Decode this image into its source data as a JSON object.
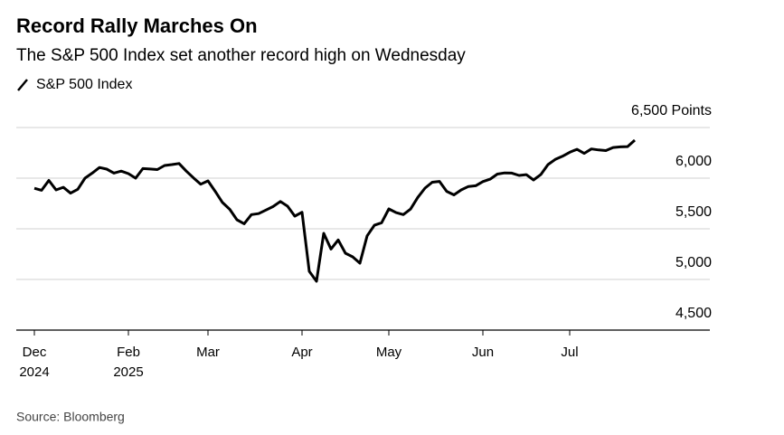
{
  "chart_data": {
    "type": "line",
    "title": "Record Rally Marches On",
    "subtitle": "The S&P 500 Index set another record high on Wednesday",
    "source": "Source: Bloomberg",
    "categories": [
      "Dec 2024",
      null,
      null,
      null,
      null,
      null,
      null,
      null,
      null,
      null,
      null,
      null,
      null,
      "Feb 2025",
      null,
      null,
      null,
      null,
      null,
      null,
      null,
      null,
      null,
      null,
      "Mar",
      null,
      null,
      null,
      null,
      null,
      null,
      null,
      null,
      null,
      null,
      null,
      null,
      "Apr",
      null,
      null,
      null,
      null,
      null,
      null,
      null,
      null,
      null,
      null,
      null,
      "May",
      null,
      null,
      null,
      null,
      null,
      null,
      null,
      null,
      null,
      null,
      null,
      null,
      "Jun",
      null,
      null,
      null,
      null,
      null,
      null,
      null,
      null,
      null,
      null,
      null,
      "Jul",
      null,
      null,
      null,
      null,
      null,
      null,
      null,
      null,
      null
    ],
    "series": [
      {
        "name": "S&P 500 Index",
        "color": "#000000",
        "values": [
          5900,
          5880,
          5978,
          5884,
          5910,
          5852,
          5890,
          6000,
          6050,
          6105,
          6089,
          6050,
          6070,
          6045,
          6000,
          6095,
          6090,
          6085,
          6125,
          6134,
          6145,
          6070,
          6003,
          5940,
          5973,
          5870,
          5760,
          5693,
          5589,
          5550,
          5640,
          5650,
          5685,
          5720,
          5770,
          5723,
          5625,
          5663,
          5080,
          4982,
          5455,
          5300,
          5390,
          5259,
          5223,
          5161,
          5430,
          5535,
          5560,
          5696,
          5660,
          5640,
          5695,
          5810,
          5902,
          5960,
          5968,
          5870,
          5835,
          5884,
          5918,
          5925,
          5966,
          5990,
          6040,
          6052,
          6050,
          6027,
          6035,
          5982,
          6035,
          6134,
          6185,
          6216,
          6255,
          6285,
          6245,
          6288,
          6279,
          6272,
          6303,
          6309,
          6312,
          6375
        ]
      }
    ],
    "ylim": [
      4500,
      6500
    ],
    "yticks": [
      {
        "value": 4500,
        "label": "4,500"
      },
      {
        "value": 5000,
        "label": "5,000"
      },
      {
        "value": 5500,
        "label": "5,500"
      },
      {
        "value": 6000,
        "label": "6,000"
      },
      {
        "value": 6500,
        "label": "6,500 Points"
      }
    ],
    "grid": true
  }
}
